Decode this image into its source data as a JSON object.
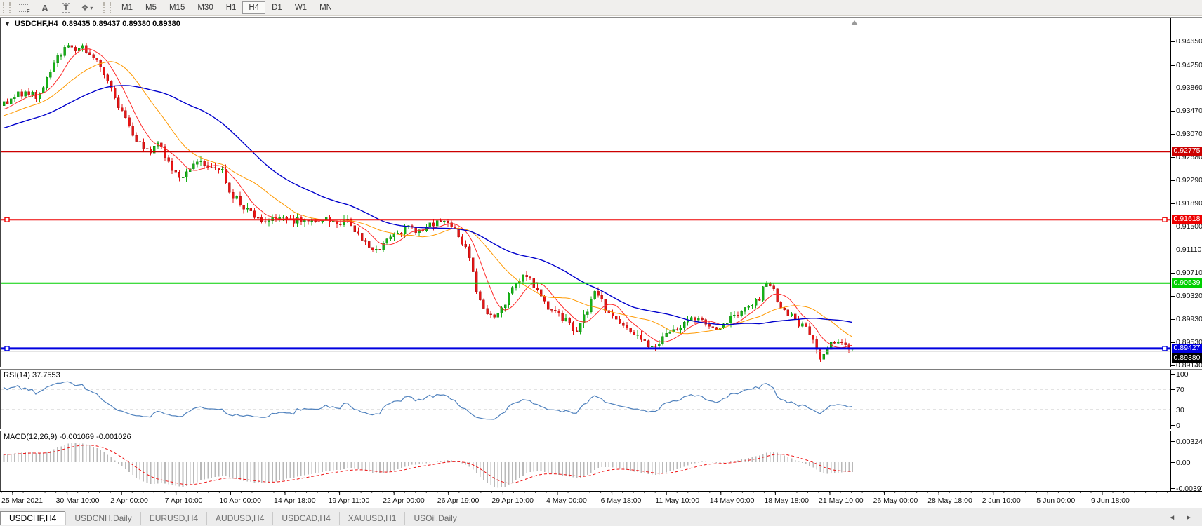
{
  "toolbar": {
    "tools": [
      {
        "name": "fibonacci-tool",
        "glyph": "F"
      },
      {
        "name": "text-label-tool",
        "glyph": "A"
      },
      {
        "name": "text-box-tool",
        "glyph": "T"
      },
      {
        "name": "arrows-tool",
        "glyph": "❖",
        "dropdown": "▾"
      }
    ],
    "timeframes": [
      "M1",
      "M5",
      "M15",
      "M30",
      "H1",
      "H4",
      "D1",
      "W1",
      "MN"
    ],
    "active_timeframe": "H4"
  },
  "chart": {
    "dropdown_glyph": "▼",
    "symbol_timeframe": "USDCHF,H4",
    "ohlc": "0.89435 0.89437 0.89380 0.89380"
  },
  "rsi_panel": {
    "name": "RSI(14)",
    "value": "37.7553",
    "axis_ticks": [
      100,
      70,
      30,
      0
    ]
  },
  "macd_panel": {
    "name": "MACD(12,26,9)",
    "value_main": "-0.001069",
    "value_signal": "-0.001026",
    "axis_ticks": [
      0.003241,
      0.0,
      -0.003976
    ],
    "axis_tick_labels": [
      "0.003241",
      "0.00",
      "-0.003976"
    ]
  },
  "tabs": [
    {
      "label": "USDCHF,H4",
      "active": true
    },
    {
      "label": "USDCNH,Daily",
      "active": false
    },
    {
      "label": "EURUSD,H4",
      "active": false
    },
    {
      "label": "AUDUSD,H4",
      "active": false
    },
    {
      "label": "USDCAD,H4",
      "active": false
    },
    {
      "label": "XAUUSD,H1",
      "active": false
    },
    {
      "label": "USOil,Daily",
      "active": false
    }
  ],
  "tab_scroll": {
    "left": "◄",
    "right": "►"
  },
  "chart_data": {
    "type": "candlestick",
    "symbol": "USDCHF",
    "timeframe": "H4",
    "current_ohlc": {
      "open": "0.89435",
      "high": "0.89437",
      "low": "0.89380",
      "close": "0.89380"
    },
    "y_axis": {
      "top": 0.95055,
      "bottom": 0.89116,
      "ticks": [
        "0.94650",
        "0.94250",
        "0.93860",
        "0.93470",
        "0.93070",
        "0.92680",
        "0.92290",
        "0.91890",
        "0.91500",
        "0.91110",
        "0.90710",
        "0.90320",
        "0.89930",
        "0.89530",
        "0.89140"
      ]
    },
    "x_axis_labels": [
      "25 Mar 2021",
      "30 Mar 10:00",
      "2 Apr 00:00",
      "7 Apr 10:00",
      "10 Apr 00:00",
      "14 Apr 18:00",
      "19 Apr 11:00",
      "22 Apr 00:00",
      "26 Apr 19:00",
      "29 Apr 10:00",
      "4 May 00:00",
      "6 May 18:00",
      "11 May 10:00",
      "14 May 00:00",
      "18 May 18:00",
      "21 May 10:00",
      "26 May 00:00",
      "28 May 18:00",
      "2 Jun 10:00",
      "5 Jun 00:00",
      "9 Jun 18:00"
    ],
    "horizontal_levels": [
      {
        "price": 0.92775,
        "label": "0.92775",
        "color": "#cc0000",
        "width": 2,
        "selected": false
      },
      {
        "price": 0.91618,
        "label": "0.91618",
        "color": "#ee0000",
        "width": 2,
        "selected": true
      },
      {
        "price": 0.90539,
        "label": "0.90539",
        "color": "#00d000",
        "width": 2,
        "selected": false
      },
      {
        "price": 0.89427,
        "label": "0.89427",
        "color": "#0000e0",
        "width": 3,
        "selected": true
      }
    ],
    "bid": {
      "price": 0.8938,
      "label": "0.89380",
      "line_color": "#b8b8b8",
      "badge_color": "#000000"
    },
    "candle_colors": {
      "up": "#16b116",
      "down": "#e81414",
      "up_stroke": "#0a7a0a",
      "down_stroke": "#9c0d0d"
    },
    "moving_averages": [
      {
        "period": 8,
        "color": "#ff2a2a",
        "width": 1
      },
      {
        "period": 20,
        "color": "#ff9900",
        "width": 1
      },
      {
        "period": 45,
        "color": "#0000cc",
        "width": 1.4
      }
    ],
    "indicators": {
      "rsi": {
        "period": 14,
        "value": 37.7553,
        "levels": [
          70,
          30
        ],
        "color": "#4f81bd"
      },
      "macd": {
        "fast": 12,
        "slow": 26,
        "signal": 9,
        "value_main": -0.001069,
        "value_signal": -0.001026,
        "histogram_color": "#b9b9b9",
        "signal_color": "#ee1111"
      }
    },
    "price_path_anchors": [
      [
        -300,
        0.9245
      ],
      [
        -150,
        0.9305
      ],
      [
        0,
        0.935
      ],
      [
        20,
        0.9372
      ],
      [
        40,
        0.938
      ],
      [
        55,
        0.937
      ],
      [
        70,
        0.9405
      ],
      [
        85,
        0.944
      ],
      [
        100,
        0.9458
      ],
      [
        110,
        0.9442
      ],
      [
        118,
        0.946
      ],
      [
        128,
        0.9438
      ],
      [
        140,
        0.9435
      ],
      [
        160,
        0.938
      ],
      [
        180,
        0.933
      ],
      [
        200,
        0.929
      ],
      [
        215,
        0.9278
      ],
      [
        228,
        0.9292
      ],
      [
        242,
        0.9255
      ],
      [
        258,
        0.9235
      ],
      [
        272,
        0.9248
      ],
      [
        286,
        0.9262
      ],
      [
        300,
        0.9246
      ],
      [
        315,
        0.9252
      ],
      [
        330,
        0.9205
      ],
      [
        345,
        0.9188
      ],
      [
        360,
        0.917
      ],
      [
        378,
        0.9162
      ],
      [
        395,
        0.9167
      ],
      [
        412,
        0.9158
      ],
      [
        430,
        0.9163
      ],
      [
        448,
        0.9156
      ],
      [
        465,
        0.9166
      ],
      [
        480,
        0.9152
      ],
      [
        495,
        0.9162
      ],
      [
        510,
        0.9138
      ],
      [
        525,
        0.9117
      ],
      [
        540,
        0.911
      ],
      [
        555,
        0.9128
      ],
      [
        570,
        0.9142
      ],
      [
        585,
        0.9147
      ],
      [
        600,
        0.914
      ],
      [
        615,
        0.9153
      ],
      [
        632,
        0.9159
      ],
      [
        645,
        0.915
      ],
      [
        657,
        0.9127
      ],
      [
        668,
        0.9105
      ],
      [
        680,
        0.9042
      ],
      [
        693,
        0.9002
      ],
      [
        705,
        0.8992
      ],
      [
        716,
        0.9012
      ],
      [
        730,
        0.9042
      ],
      [
        742,
        0.9062
      ],
      [
        753,
        0.9064
      ],
      [
        766,
        0.9042
      ],
      [
        780,
        0.9012
      ],
      [
        795,
        0.9
      ],
      [
        810,
        0.8987
      ],
      [
        822,
        0.8972
      ],
      [
        835,
        0.9002
      ],
      [
        847,
        0.9036
      ],
      [
        858,
        0.9022
      ],
      [
        870,
        0.9
      ],
      [
        882,
        0.8987
      ],
      [
        895,
        0.8977
      ],
      [
        908,
        0.8965
      ],
      [
        920,
        0.8952
      ],
      [
        932,
        0.8944
      ],
      [
        945,
        0.896
      ],
      [
        958,
        0.8972
      ],
      [
        970,
        0.8982
      ],
      [
        982,
        0.8994
      ],
      [
        995,
        0.8997
      ],
      [
        1008,
        0.8987
      ],
      [
        1020,
        0.8977
      ],
      [
        1032,
        0.8987
      ],
      [
        1045,
        0.9
      ],
      [
        1058,
        0.9007
      ],
      [
        1070,
        0.9012
      ],
      [
        1082,
        0.9027
      ],
      [
        1092,
        0.9054
      ],
      [
        1100,
        0.905
      ],
      [
        1110,
        0.9017
      ],
      [
        1122,
        0.9002
      ],
      [
        1135,
        0.899
      ],
      [
        1148,
        0.8977
      ],
      [
        1160,
        0.8952
      ],
      [
        1170,
        0.8927
      ],
      [
        1180,
        0.8944
      ],
      [
        1192,
        0.896
      ],
      [
        1202,
        0.8952
      ],
      [
        1215,
        0.894
      ]
    ]
  }
}
